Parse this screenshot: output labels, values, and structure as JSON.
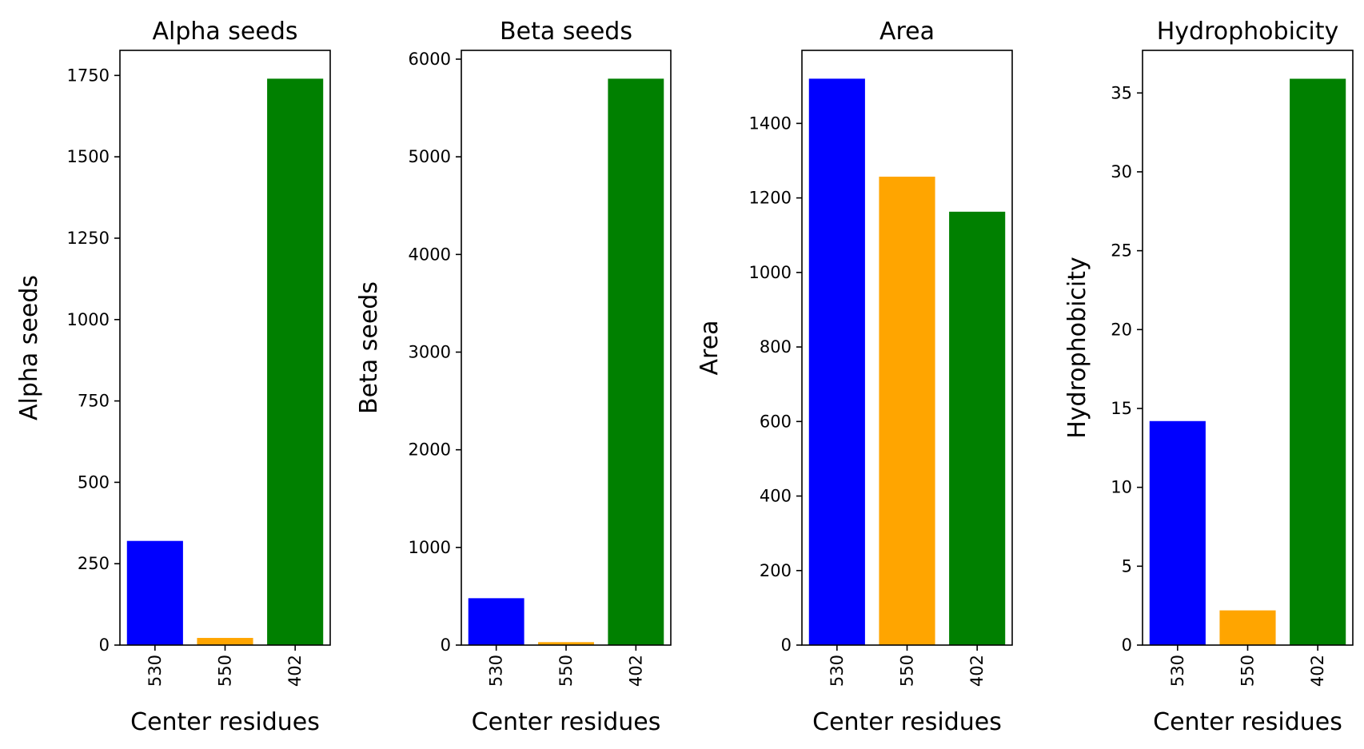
{
  "chart_data": [
    {
      "type": "bar",
      "title": "Alpha seeds",
      "xlabel": "Center residues",
      "ylabel": "Alpha seeds",
      "categories": [
        "530",
        "550",
        "402"
      ],
      "values": [
        320,
        22,
        1740
      ],
      "colors": [
        "#0000ff",
        "#ffa500",
        "#008000"
      ],
      "ylim": [
        0,
        1827
      ],
      "yticks": [
        0,
        250,
        500,
        750,
        1000,
        1250,
        1500,
        1750
      ],
      "grid": false
    },
    {
      "type": "bar",
      "title": "Beta seeds",
      "xlabel": "Center residues",
      "ylabel": "Beta seeds",
      "categories": [
        "530",
        "550",
        "402"
      ],
      "values": [
        480,
        30,
        5800
      ],
      "colors": [
        "#0000ff",
        "#ffa500",
        "#008000"
      ],
      "ylim": [
        0,
        6090
      ],
      "yticks": [
        0,
        1000,
        2000,
        3000,
        4000,
        5000,
        6000
      ],
      "grid": false
    },
    {
      "type": "bar",
      "title": "Area",
      "xlabel": "Center residues",
      "ylabel": "Area",
      "categories": [
        "530",
        "550",
        "402"
      ],
      "values": [
        1520,
        1257,
        1163
      ],
      "colors": [
        "#0000ff",
        "#ffa500",
        "#008000"
      ],
      "ylim": [
        0,
        1596
      ],
      "yticks": [
        0,
        200,
        400,
        600,
        800,
        1000,
        1200,
        1400
      ],
      "grid": false
    },
    {
      "type": "bar",
      "title": "Hydrophobicity",
      "xlabel": "Center residues",
      "ylabel": "Hydrophobicity",
      "categories": [
        "530",
        "550",
        "402"
      ],
      "values": [
        14.2,
        2.2,
        35.9
      ],
      "colors": [
        "#0000ff",
        "#ffa500",
        "#008000"
      ],
      "ylim": [
        0,
        37.7
      ],
      "yticks": [
        0,
        5,
        10,
        15,
        20,
        25,
        30,
        35
      ],
      "grid": false
    }
  ]
}
